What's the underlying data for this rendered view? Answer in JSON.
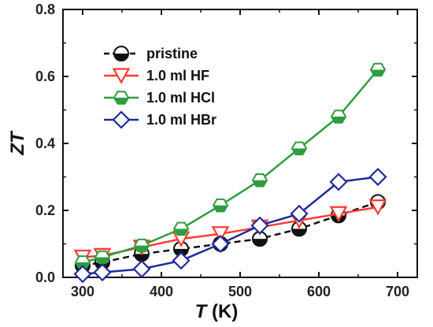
{
  "chart_data": {
    "type": "line",
    "x": [
      300,
      325,
      375,
      425,
      475,
      525,
      575,
      625,
      675
    ],
    "series": [
      {
        "name": "pristine",
        "values": [
          0.035,
          0.045,
          0.07,
          0.085,
          0.1,
          0.115,
          0.145,
          0.185,
          0.225
        ],
        "color": "#111111",
        "marker": "circle-half",
        "line_style": "dashed"
      },
      {
        "name": "1.0 ml HF",
        "values": [
          0.06,
          0.065,
          0.09,
          0.115,
          0.13,
          0.15,
          0.17,
          0.19,
          0.21
        ],
        "color": "#ff3b30",
        "marker": "triangle-down-open",
        "line_style": "solid"
      },
      {
        "name": "1.0 ml HCl",
        "values": [
          0.045,
          0.06,
          0.095,
          0.145,
          0.215,
          0.29,
          0.385,
          0.48,
          0.62
        ],
        "color": "#2e9c3f",
        "marker": "hexagon-half",
        "line_style": "solid"
      },
      {
        "name": "1.0 ml HBr",
        "values": [
          0.01,
          0.015,
          0.025,
          0.05,
          0.1,
          0.155,
          0.19,
          0.285,
          0.3
        ],
        "color": "#1f2a9a",
        "marker": "diamond-open",
        "line_style": "solid"
      }
    ],
    "xlim": [
      275,
      725
    ],
    "ylim": [
      0.0,
      0.8
    ],
    "xticks": [
      300,
      400,
      500,
      600,
      700
    ],
    "yticks": [
      0.0,
      0.2,
      0.4,
      0.6,
      0.8
    ],
    "xtick_labels": [
      "300",
      "400",
      "500",
      "600",
      "700"
    ],
    "ytick_labels": [
      "0.0",
      "0.2",
      "0.4",
      "0.6",
      "0.8"
    ],
    "xlabel_main": "T",
    "xlabel_unit": " (K)",
    "ylabel": "ZT",
    "grid": false,
    "legend_position": "upper-left"
  }
}
